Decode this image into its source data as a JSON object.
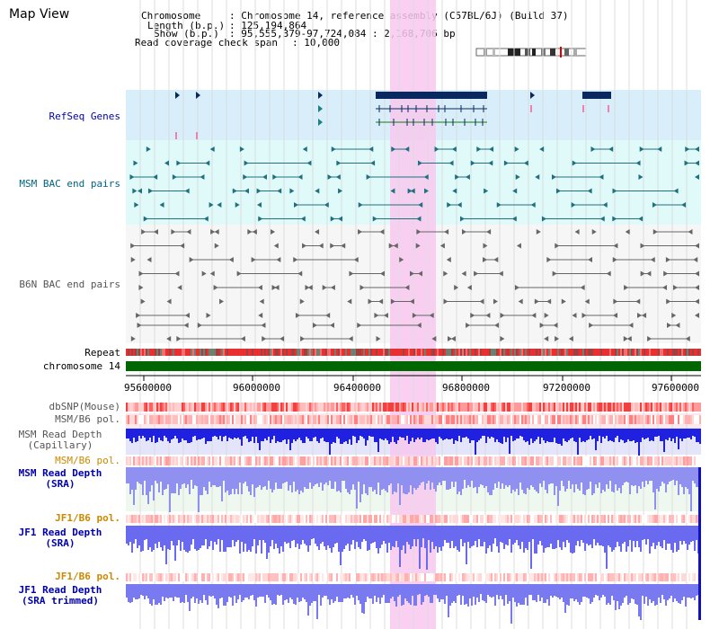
{
  "title": "Map View",
  "header": {
    "chromosome_key": "Chromosome",
    "chromosome_val": ": Chromosome 14, reference assembly (C57BL/6J) (Build 37)",
    "length_key": "Length (b.p.)",
    "length_val": ": 125,194,864",
    "show_key": "Show (b.p.)",
    "show_val": ": 95,555,379-97,724,084 : 2,168,706 bp",
    "coverage_key": "Read coverage check span",
    "coverage_val": ": 10,000"
  },
  "tracks": {
    "refseq": "RefSeq Genes",
    "msm_bac": "MSM BAC end pairs",
    "b6n_bac": "B6N BAC end pairs",
    "repeat": "Repeat",
    "chromosome": "chromosome 14",
    "dbsnp": "dbSNP(Mouse)",
    "msm_b6_pol_1": "MSM/B6 pol.",
    "msm_depth_cap_1": "MSM Read Depth",
    "msm_depth_cap_2": "(Capillary)",
    "msm_b6_pol_2": "MSM/B6 pol.",
    "msm_depth_sra_1": "MSM Read Depth",
    "msm_depth_sra_2": "(SRA)",
    "jf1_b6_pol_1": "JF1/B6 pol.",
    "jf1_depth_sra_1": "JF1 Read Depth",
    "jf1_depth_sra_2": "(SRA)",
    "jf1_b6_pol_2": "JF1/B6 pol.",
    "jf1_depth_trim_1": "JF1 Read Depth",
    "jf1_depth_trim_2": "(SRA trimmed)"
  },
  "axis_ticks": [
    "95600000",
    "96000000",
    "96400000",
    "96800000",
    "97200000",
    "97600000"
  ],
  "colors": {
    "refseq_bg": "#d8eefa",
    "msm_bg": "#e0fafa",
    "highlight": "#f8c8ee",
    "gene": "#0a2860",
    "teal": "#207080",
    "grey": "#666666",
    "chrom_green": "#006600",
    "repeat_red": "#e02020",
    "depth_blue": "#2020e0",
    "depth_light": "#9090f0"
  }
}
